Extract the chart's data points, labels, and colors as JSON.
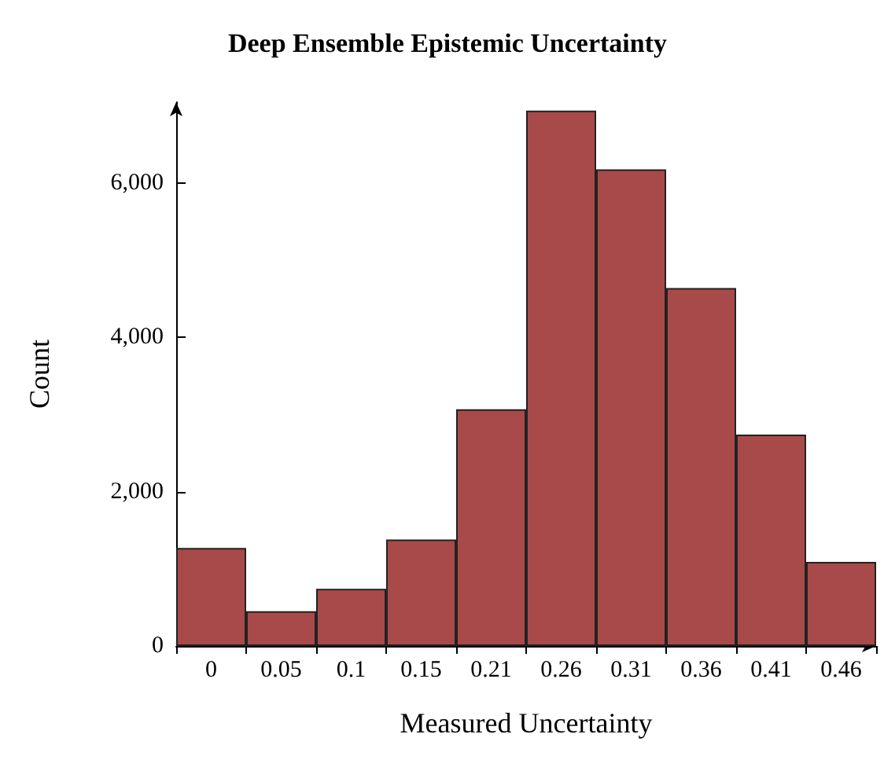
{
  "chart_data": {
    "type": "bar",
    "title": "Deep Ensemble Epistemic Uncertainty",
    "xlabel": "Measured Uncertainty",
    "ylabel": "Count",
    "categories": [
      "0",
      "0.05",
      "0.1",
      "0.15",
      "0.21",
      "0.26",
      "0.31",
      "0.36",
      "0.41",
      "0.46"
    ],
    "values": [
      1270,
      450,
      740,
      1380,
      3070,
      6940,
      6180,
      4640,
      2740,
      1090
    ],
    "color": "#a84a4a",
    "ylim": [
      0,
      7050
    ],
    "yticks": [
      0,
      {
        "value": 2000,
        "label": "2,000"
      },
      {
        "value": 4000,
        "label": "4,000"
      },
      {
        "value": 6000,
        "label": "6,000"
      }
    ],
    "grid": false
  }
}
